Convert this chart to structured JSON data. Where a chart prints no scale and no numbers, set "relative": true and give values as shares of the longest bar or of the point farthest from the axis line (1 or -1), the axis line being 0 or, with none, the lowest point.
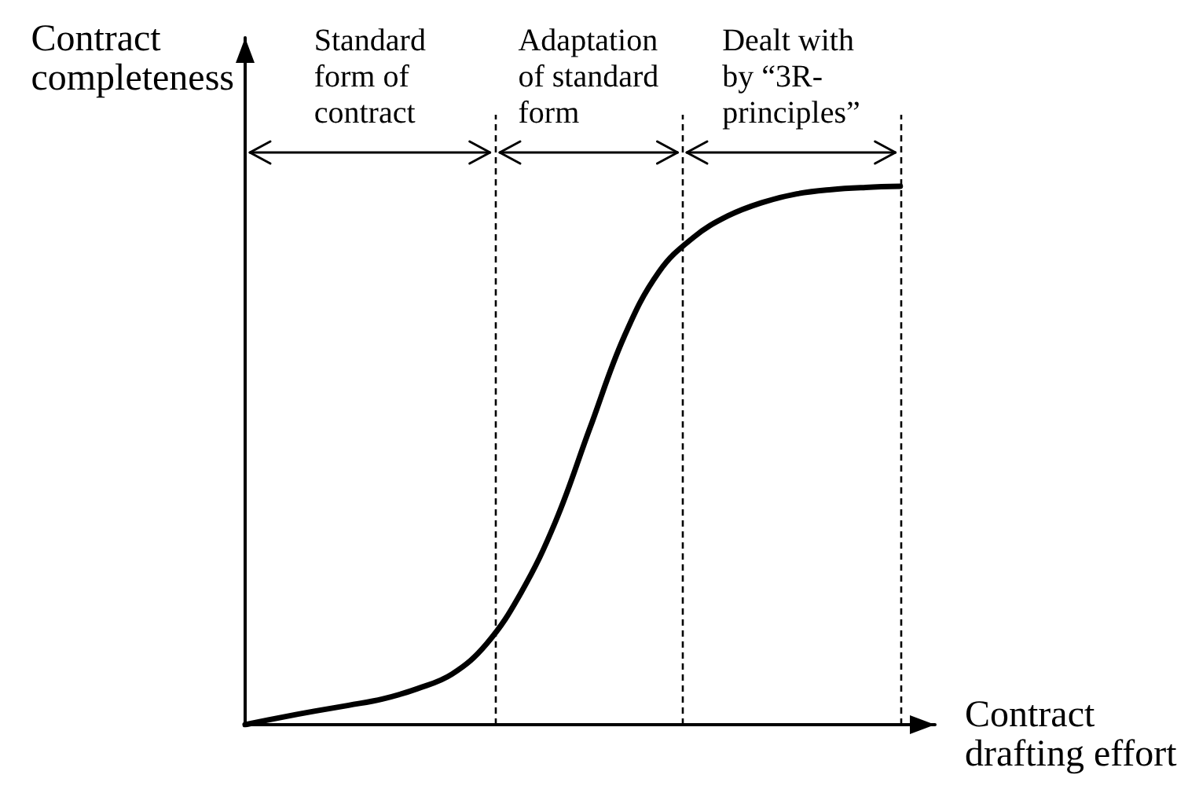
{
  "chart_data": {
    "type": "line",
    "relative": true,
    "xlabel": "Contract drafting effort",
    "ylabel": "Contract completeness",
    "categories": [
      null,
      null,
      null,
      null,
      null,
      null,
      null,
      null,
      null,
      null,
      null,
      null,
      null,
      null,
      null,
      null,
      null,
      null,
      null,
      null
    ],
    "series": [
      {
        "color": "#000000",
        "values": [
          0,
          0.013,
          0.025,
          0.036,
          0.048,
          0.067,
          0.094,
          0.15,
          0.245,
          0.377,
          0.551,
          0.722,
          0.841,
          0.905,
          0.945,
          0.97,
          0.986,
          0.994,
          0.998,
          1
        ]
      }
    ],
    "marker": "none",
    "line_style": "solid",
    "annotations": [
      "Standard form of contract",
      "Adaptation of standard form",
      "Dealt with by “3R-principles”"
    ]
  }
}
